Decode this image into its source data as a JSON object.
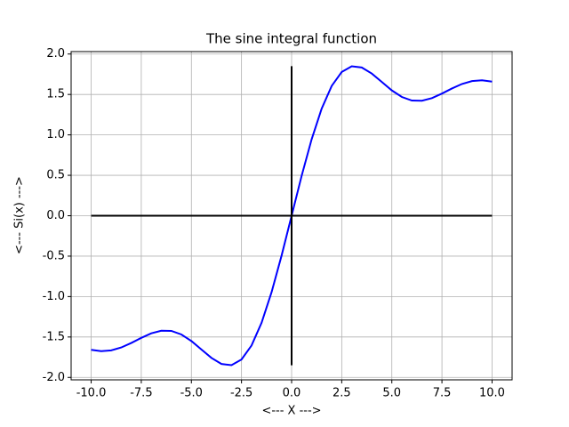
{
  "chart_data": {
    "type": "line",
    "title": "The sine integral function",
    "x_label": "<--- X --->",
    "y_label": "<--- Si(x) --->",
    "grid": true,
    "xlim": [
      -11,
      11
    ],
    "ylim": [
      -2.03,
      2.03
    ],
    "xticks": [
      {
        "value": -10,
        "label": "-10.0"
      },
      {
        "value": -7.5,
        "label": "-7.5"
      },
      {
        "value": -5,
        "label": "-5.0"
      },
      {
        "value": -2.5,
        "label": "-2.5"
      },
      {
        "value": 0,
        "label": "0.0"
      },
      {
        "value": 2.5,
        "label": "2.5"
      },
      {
        "value": 5,
        "label": "5.0"
      },
      {
        "value": 7.5,
        "label": "7.5"
      },
      {
        "value": 10,
        "label": "10.0"
      }
    ],
    "yticks": [
      {
        "value": -2,
        "label": "-2.0"
      },
      {
        "value": -1.5,
        "label": "-1.5"
      },
      {
        "value": -1,
        "label": "-1.0"
      },
      {
        "value": -0.5,
        "label": "-0.5"
      },
      {
        "value": 0,
        "label": "0.0"
      },
      {
        "value": 0.5,
        "label": "0.5"
      },
      {
        "value": 1,
        "label": "1.0"
      },
      {
        "value": 1.5,
        "label": "1.5"
      },
      {
        "value": 2,
        "label": "2.0"
      }
    ],
    "series": [
      {
        "color": "#0000ff",
        "width": 2,
        "x": [
          -10,
          -9.5,
          -9,
          -8.5,
          -8,
          -7.5,
          -7,
          -6.5,
          -6,
          -5.5,
          -5,
          -4.5,
          -4,
          -3.5,
          -3,
          -2.5,
          -2,
          -1.5,
          -1,
          -0.5,
          0,
          0.5,
          1,
          1.5,
          2,
          2.5,
          3,
          3.5,
          4,
          4.5,
          5,
          5.5,
          6,
          6.5,
          7,
          7.5,
          8,
          8.5,
          9,
          9.5,
          10
        ],
        "values": [
          -1.6583,
          -1.6745,
          -1.665,
          -1.6296,
          -1.5742,
          -1.5107,
          -1.4546,
          -1.4218,
          -1.4247,
          -1.4687,
          -1.5499,
          -1.6541,
          -1.7582,
          -1.8331,
          -1.8487,
          -1.7785,
          -1.6054,
          -1.3247,
          -0.9461,
          -0.4931,
          0,
          0.4931,
          0.9461,
          1.3247,
          1.6054,
          1.7785,
          1.8487,
          1.8331,
          1.7582,
          1.6541,
          1.5499,
          1.4687,
          1.4247,
          1.4218,
          1.4546,
          1.5107,
          1.5742,
          1.6296,
          1.665,
          1.6745,
          1.6583
        ]
      },
      {
        "color": "#000000",
        "width": 2,
        "x": [
          -10,
          10
        ],
        "values": [
          0,
          0
        ]
      },
      {
        "color": "#000000",
        "width": 2,
        "x": [
          0,
          0
        ],
        "values": [
          -1.85,
          1.85
        ]
      }
    ]
  }
}
